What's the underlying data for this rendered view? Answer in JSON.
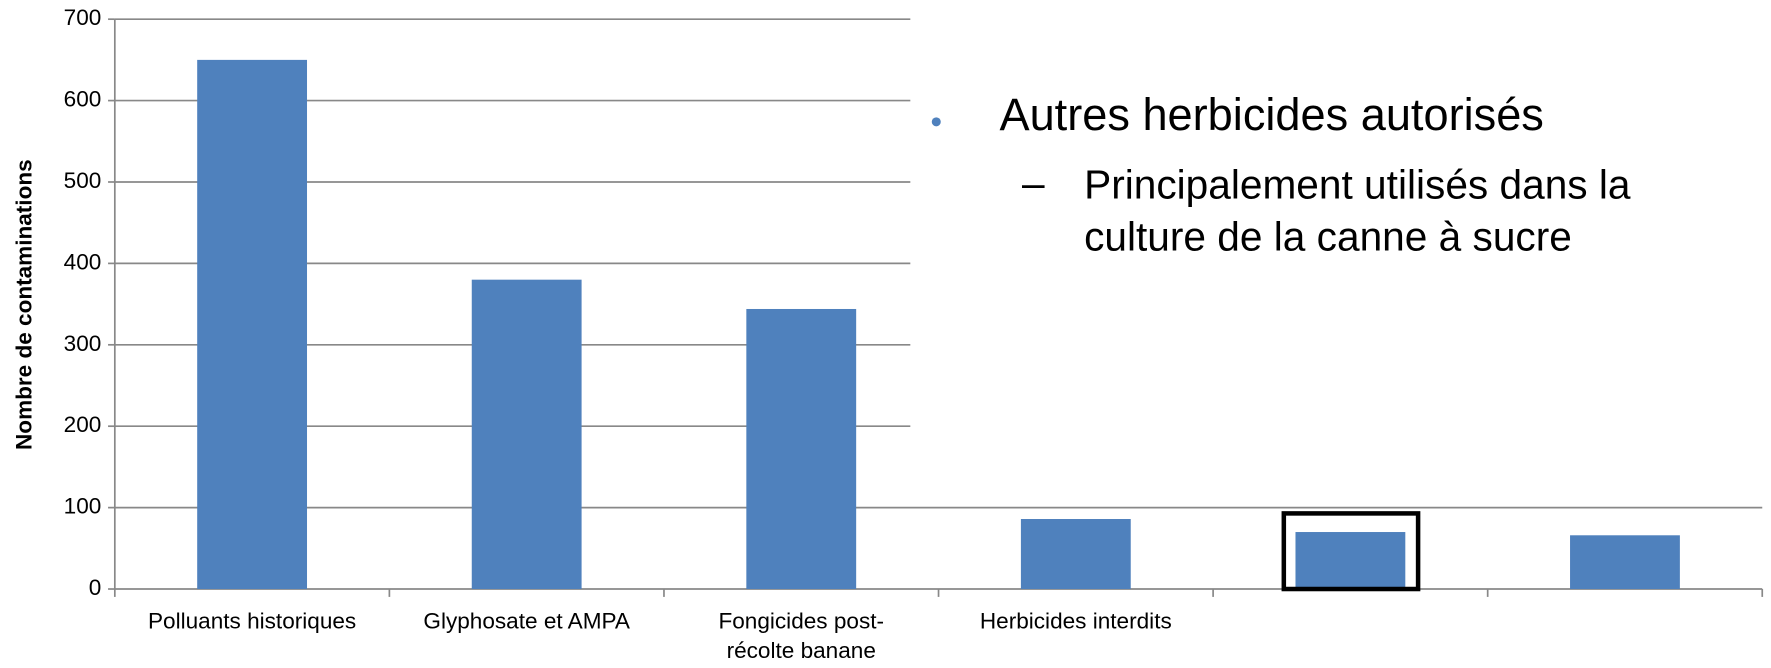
{
  "chart_data": {
    "type": "bar",
    "y_label": "Nombre de contaminations",
    "categories": [
      "Polluants historiques",
      "Glyphosate et AMPA",
      "Fongicides post-récolte banane",
      "Herbicides interdits",
      null,
      null
    ],
    "values": [
      650,
      380,
      344,
      86,
      70,
      66
    ],
    "color": "#4f81bd",
    "ylim": [
      0,
      700
    ],
    "yticks": [
      0,
      100,
      200,
      300,
      400,
      500,
      600,
      700
    ],
    "grid": true,
    "annotation": {
      "bullet": "Autres herbicides autorisés",
      "subbullet": "Principalement utilisés dans la culture de la canne à sucre"
    }
  }
}
